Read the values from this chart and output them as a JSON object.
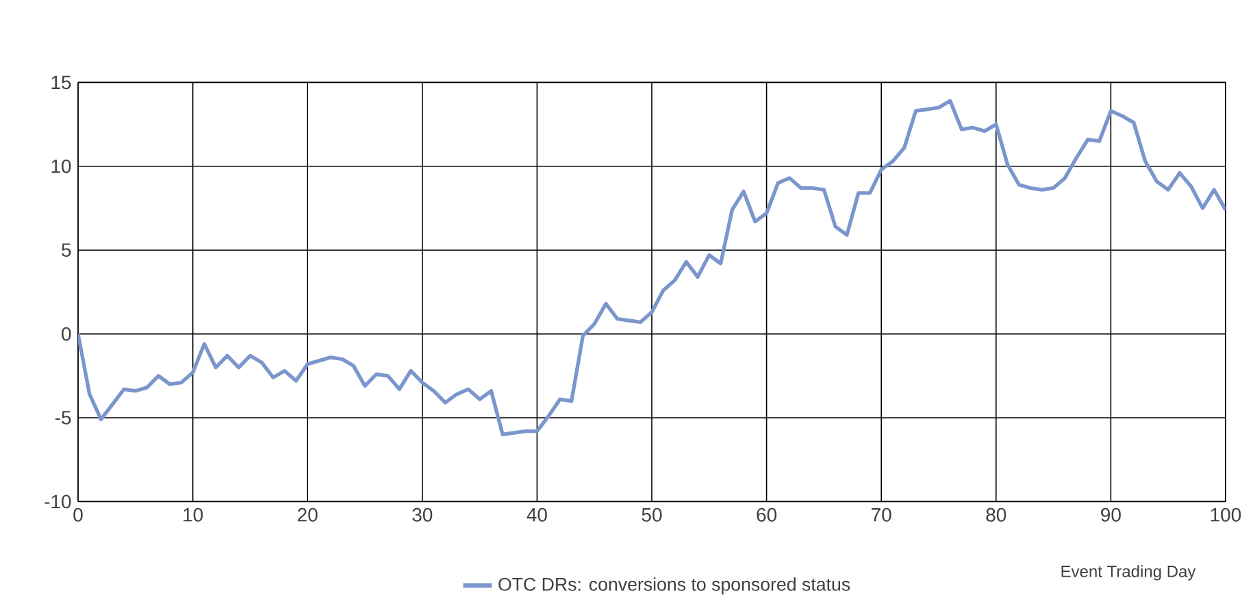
{
  "chart_data": {
    "type": "line",
    "xlabel": "Event Trading Day",
    "x": [
      0,
      1,
      2,
      3,
      4,
      5,
      6,
      7,
      8,
      9,
      10,
      11,
      12,
      13,
      14,
      15,
      16,
      17,
      18,
      19,
      20,
      21,
      22,
      23,
      24,
      25,
      26,
      27,
      28,
      29,
      30,
      31,
      32,
      33,
      34,
      35,
      36,
      37,
      38,
      39,
      40,
      41,
      42,
      43,
      44,
      45,
      46,
      47,
      48,
      49,
      50,
      51,
      52,
      53,
      54,
      55,
      56,
      57,
      58,
      59,
      60,
      61,
      62,
      63,
      64,
      65,
      66,
      67,
      68,
      69,
      70,
      71,
      72,
      73,
      74,
      75,
      76,
      77,
      78,
      79,
      80,
      81,
      82,
      83,
      84,
      85,
      86,
      87,
      88,
      89,
      90,
      91,
      92,
      93,
      94,
      95,
      96,
      97,
      98,
      99,
      100
    ],
    "series": [
      {
        "name": "OTC DRs: conversions to sponsored status",
        "color": "#7b96cc",
        "values": [
          0,
          -3.6,
          -5.1,
          -4.2,
          -3.3,
          -3.4,
          -3.2,
          -2.5,
          -3.0,
          -2.9,
          -2.3,
          -0.6,
          -2.0,
          -1.3,
          -2.0,
          -1.3,
          -1.7,
          -2.6,
          -2.2,
          -2.8,
          -1.8,
          -1.6,
          -1.4,
          -1.5,
          -1.9,
          -3.1,
          -2.4,
          -2.5,
          -3.3,
          -2.2,
          -2.9,
          -3.4,
          -4.1,
          -3.6,
          -3.3,
          -3.9,
          -3.4,
          -6.0,
          -5.9,
          -5.8,
          -5.8,
          -4.9,
          -3.9,
          -4.0,
          -0.1,
          0.6,
          1.8,
          0.9,
          0.8,
          0.7,
          1.3,
          2.6,
          3.2,
          4.3,
          3.4,
          4.7,
          4.2,
          7.4,
          8.5,
          6.7,
          7.2,
          9.0,
          9.3,
          8.7,
          8.7,
          8.6,
          6.4,
          5.9,
          8.4,
          8.4,
          9.8,
          10.3,
          11.1,
          13.3,
          13.4,
          13.5,
          13.9,
          12.2,
          12.3,
          12.1,
          12.5,
          10.1,
          8.9,
          8.7,
          8.6,
          8.7,
          9.3,
          10.5,
          11.6,
          11.5,
          13.3,
          13.0,
          12.6,
          10.3,
          9.1,
          8.6,
          9.6,
          8.8,
          7.5,
          8.6,
          7.4
        ]
      }
    ],
    "xlim": [
      0,
      100
    ],
    "xticks": [
      0,
      10,
      20,
      30,
      40,
      50,
      60,
      70,
      80,
      90,
      100
    ],
    "ylim": [
      -10,
      15
    ],
    "yticks": [
      -10,
      -5,
      0,
      5,
      10,
      15
    ],
    "grid": true,
    "legend": "bottom",
    "marker": "none",
    "line_style": "solid"
  }
}
